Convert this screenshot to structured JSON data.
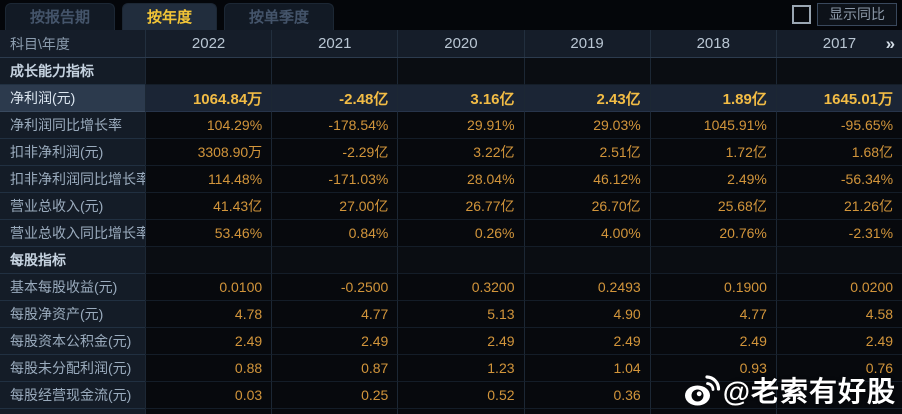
{
  "tabs": [
    {
      "label": "按报告期",
      "active": false
    },
    {
      "label": "按年度",
      "active": true
    },
    {
      "label": "按单季度",
      "active": false
    }
  ],
  "controls": {
    "show_yoy_label": "显示同比",
    "checkbox_checked": false
  },
  "table": {
    "corner_label": "科目\\年度",
    "years": [
      "2022",
      "2021",
      "2020",
      "2019",
      "2018",
      "2017"
    ],
    "more_symbol": "»",
    "rows": [
      {
        "type": "section",
        "label": "成长能力指标",
        "values": [
          "",
          "",
          "",
          "",
          "",
          ""
        ]
      },
      {
        "type": "highlight",
        "label": "净利润(元)",
        "values": [
          "1064.84万",
          "-2.48亿",
          "3.16亿",
          "2.43亿",
          "1.89亿",
          "1645.01万"
        ]
      },
      {
        "type": "data",
        "label": "净利润同比增长率",
        "values": [
          "104.29%",
          "-178.54%",
          "29.91%",
          "29.03%",
          "1045.91%",
          "-95.65%"
        ]
      },
      {
        "type": "data",
        "label": "扣非净利润(元)",
        "values": [
          "3308.90万",
          "-2.29亿",
          "3.22亿",
          "2.51亿",
          "1.72亿",
          "1.68亿"
        ]
      },
      {
        "type": "data",
        "label": "扣非净利润同比增长率",
        "values": [
          "114.48%",
          "-171.03%",
          "28.04%",
          "46.12%",
          "2.49%",
          "-56.34%"
        ]
      },
      {
        "type": "data",
        "label": "营业总收入(元)",
        "values": [
          "41.43亿",
          "27.00亿",
          "26.77亿",
          "26.70亿",
          "25.68亿",
          "21.26亿"
        ]
      },
      {
        "type": "data",
        "label": "营业总收入同比增长率",
        "values": [
          "53.46%",
          "0.84%",
          "0.26%",
          "4.00%",
          "20.76%",
          "-2.31%"
        ]
      },
      {
        "type": "section",
        "label": "每股指标",
        "values": [
          "",
          "",
          "",
          "",
          "",
          ""
        ]
      },
      {
        "type": "data",
        "label": "基本每股收益(元)",
        "values": [
          "0.0100",
          "-0.2500",
          "0.3200",
          "0.2493",
          "0.1900",
          "0.0200"
        ]
      },
      {
        "type": "data",
        "label": "每股净资产(元)",
        "values": [
          "4.78",
          "4.77",
          "5.13",
          "4.90",
          "4.77",
          "4.58"
        ]
      },
      {
        "type": "data",
        "label": "每股资本公积金(元)",
        "values": [
          "2.49",
          "2.49",
          "2.49",
          "2.49",
          "2.49",
          "2.49"
        ]
      },
      {
        "type": "data",
        "label": "每股未分配利润(元)",
        "values": [
          "0.88",
          "0.87",
          "1.23",
          "1.04",
          "0.93",
          "0.76"
        ]
      },
      {
        "type": "data",
        "label": "每股经营现金流(元)",
        "values": [
          "0.03",
          "0.25",
          "0.52",
          "0.36",
          "",
          ""
        ]
      }
    ]
  },
  "watermark": {
    "text": "@老索有好股",
    "icon": "weibo-logo-icon"
  },
  "colors": {
    "background": "#05070b",
    "accent_yellow": "#f2c537",
    "value_orange": "#d2953b",
    "highlight_value_yellow": "#f2bc45",
    "header_text": "#b9c6d3",
    "label_text": "#9aabbd",
    "watermark_white": "#ffffff"
  }
}
